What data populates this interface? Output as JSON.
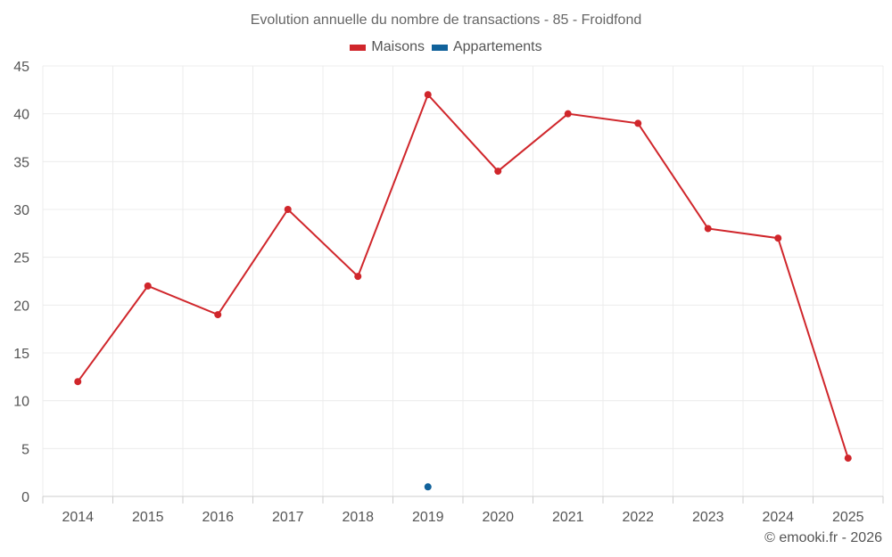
{
  "chart_data": {
    "type": "line",
    "title": "Evolution annuelle du nombre de transactions - 85 - Froidfond",
    "xlabel": "",
    "ylabel": "",
    "categories": [
      "2014",
      "2015",
      "2016",
      "2017",
      "2018",
      "2019",
      "2020",
      "2021",
      "2022",
      "2023",
      "2024",
      "2025"
    ],
    "yticks": [
      0,
      5,
      10,
      15,
      20,
      25,
      30,
      35,
      40,
      45
    ],
    "ylim": [
      0,
      45
    ],
    "grid": true,
    "legend_position": "top-center",
    "series": [
      {
        "name": "Maisons",
        "color": "#d0262b",
        "values": [
          12,
          22,
          19,
          30,
          23,
          42,
          34,
          40,
          39,
          28,
          27,
          4
        ]
      },
      {
        "name": "Appartements",
        "color": "#11629b",
        "values": [
          null,
          null,
          null,
          null,
          null,
          1,
          null,
          null,
          null,
          null,
          null,
          null
        ]
      }
    ]
  },
  "credit": "© emooki.fr - 2026"
}
